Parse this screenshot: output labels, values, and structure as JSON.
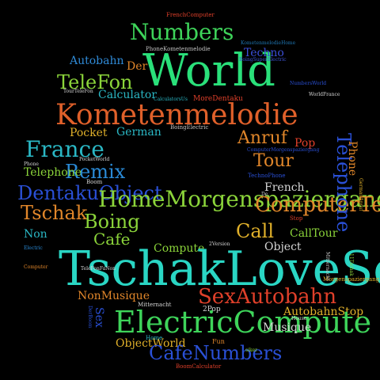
{
  "background": "#000000",
  "words": [
    {
      "text": "FrenchComputer",
      "color": "#e0402a"
    },
    {
      "text": "Numbers",
      "color": "#3ed45a"
    },
    {
      "text": "KometenmelodieHome",
      "color": "#1f77b4"
    },
    {
      "text": "PhoneKometenmelodie",
      "color": "#c3c3c3"
    },
    {
      "text": "Der",
      "color": "#e0862a"
    },
    {
      "text": "Autobahn",
      "color": "#2f8ad6"
    },
    {
      "text": "World",
      "color": "#2ae07a"
    },
    {
      "text": "Techno",
      "color": "#3a4ed6"
    },
    {
      "text": "BoingSuperElectric",
      "color": "#3d56d6"
    },
    {
      "text": "TeleFon",
      "color": "#8bd43a"
    },
    {
      "text": "Calculator",
      "color": "#2ab7c4"
    },
    {
      "text": "NumbersWorld",
      "color": "#2a50d6"
    },
    {
      "text": "TourTeleFon",
      "color": "#d6d6d6"
    },
    {
      "text": "WorldFrance",
      "color": "#d6d6d6"
    },
    {
      "text": "CalculatorsUs",
      "color": "#2ab7c4"
    },
    {
      "text": "MoreDentaku",
      "color": "#e0402a"
    },
    {
      "text": "Kometenmelodie",
      "color": "#e0602a"
    },
    {
      "text": "Pocket",
      "color": "#e0b02a"
    },
    {
      "text": "German",
      "color": "#2ab7c4"
    },
    {
      "text": "BoingElectric",
      "color": "#c3c3c3"
    },
    {
      "text": "Anruf",
      "color": "#e0862a"
    },
    {
      "text": "Pop",
      "color": "#e0402a"
    },
    {
      "text": "ComputerMorgenspaziergang",
      "color": "#2a50d6"
    },
    {
      "text": "France",
      "color": "#2ab7c4"
    },
    {
      "text": "PocketWorld",
      "color": "#d6d6d6"
    },
    {
      "text": "Tour",
      "color": "#e0862a"
    },
    {
      "text": "Remix",
      "color": "#2a8ad6"
    },
    {
      "text": "Telephone",
      "color": "#2a50d6"
    },
    {
      "text": "Phone",
      "color": "#e0862a"
    },
    {
      "text": "Boom",
      "color": "#8bd43a"
    },
    {
      "text": "TechnoPhone",
      "color": "#d6d6d6"
    },
    {
      "text": "DentakuObject",
      "color": "#d6d6d6"
    },
    {
      "text": "HomeMorgenspaziergang",
      "color": "#2a50d6"
    },
    {
      "text": "French",
      "color": "#2a50d6"
    },
    {
      "text": "De",
      "color": "#8bd43a"
    },
    {
      "text": "Tschak",
      "color": "#d6d6d6"
    },
    {
      "text": "ComputerTechno",
      "color": "#d6d6d6"
    },
    {
      "text": "Boing",
      "color": "#e0862a"
    },
    {
      "text": "Stop",
      "color": "#e0862a"
    },
    {
      "text": "Call",
      "color": "#8bd43a"
    },
    {
      "text": "CallTour",
      "color": "#e0402a"
    },
    {
      "text": "Non",
      "color": "#e0b02a"
    },
    {
      "text": "Cafe",
      "color": "#8bd43a"
    },
    {
      "text": "Compute",
      "color": "#2ab7c4"
    },
    {
      "text": "Object",
      "color": "#8bd43a"
    },
    {
      "text": "2Version",
      "color": "#8bd43a"
    },
    {
      "text": "Electric",
      "color": "#d6d6d6"
    },
    {
      "text": "TschakLoveSong",
      "color": "#d6d6d6"
    },
    {
      "text": "TeleFonFaNon",
      "color": "#2a8ad6"
    },
    {
      "text": "Computer",
      "color": "#2ad6c4"
    },
    {
      "text": "NonMusique",
      "color": "#d6d6d6"
    },
    {
      "text": "SexAutobahn",
      "color": "#e0862a"
    },
    {
      "text": "Morgenspaziergang",
      "color": "#e0862a"
    },
    {
      "text": "Mitternacht",
      "color": "#e0402a"
    },
    {
      "text": "2Pop",
      "color": "#e0b02a"
    },
    {
      "text": "AutobahnStop",
      "color": "#d6d6d6"
    },
    {
      "text": "ElectricCompute",
      "color": "#d6d6d6"
    },
    {
      "text": "House",
      "color": "#e0b02a"
    },
    {
      "text": "Musique",
      "color": "#3ed45a"
    },
    {
      "text": "ObjectWorld",
      "color": "#d6d6d6"
    },
    {
      "text": "Home",
      "color": "#d6d6d6"
    },
    {
      "text": "Fun",
      "color": "#e0b02a"
    },
    {
      "text": "CafeNumbers",
      "color": "#2ab7c4"
    },
    {
      "text": "BoomCalculator",
      "color": "#e0862a"
    },
    {
      "text": "Dentaku",
      "color": "#2a50d6"
    },
    {
      "text": "MusiqueCafe",
      "color": "#e0402a"
    },
    {
      "text": "Sex",
      "color": "#2a50d6"
    },
    {
      "text": "DerBoom",
      "color": "#2a50d6"
    },
    {
      "text": "GermanAnruf",
      "color": "#e0b02a"
    },
    {
      "text": "11Tschak",
      "color": "#8bd43a"
    },
    {
      "text": "Mitternacht",
      "color": "#c3c3c3"
    },
    {
      "text": "siker",
      "color": "#8bd43a"
    }
  ]
}
